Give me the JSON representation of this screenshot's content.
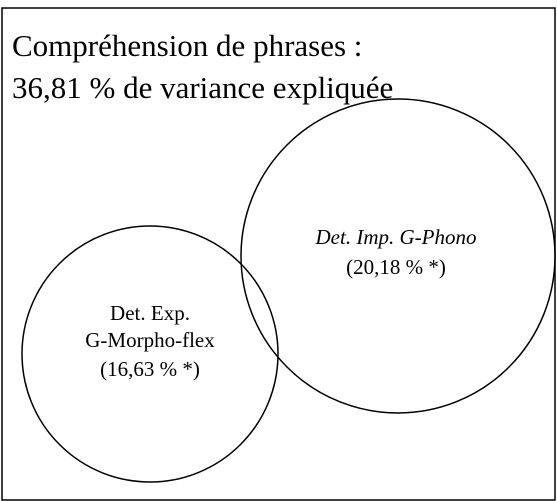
{
  "title": {
    "lines": [
      "Compréhension de phrases :",
      "36,81 % de variance expliquée"
    ]
  },
  "sets": [
    {
      "label_lines": [
        "Det. Exp.",
        "G-Morpho-flex"
      ],
      "share": "(16,63 % *)"
    },
    {
      "label_lines": [
        "Det. Imp. G-Phono"
      ],
      "share": "(20,18 % *)"
    }
  ]
}
